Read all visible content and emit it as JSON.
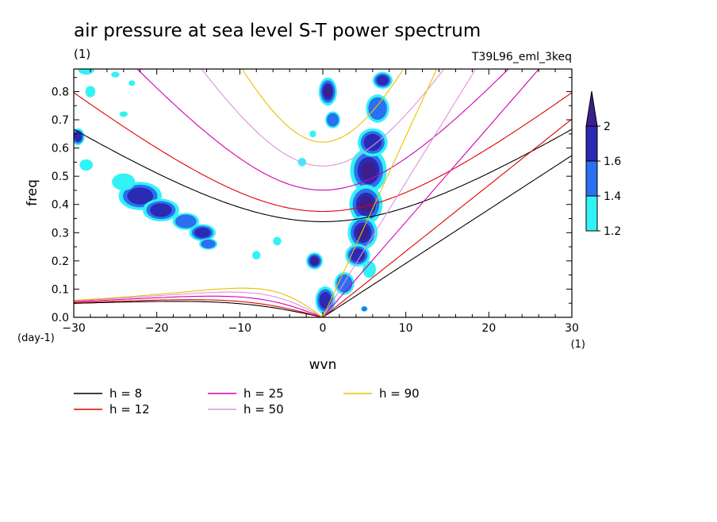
{
  "chart_data": {
    "type": "heatmap",
    "title": "air pressure at sea level S-T power spectrum",
    "subtitle_left": "(1)",
    "subtitle_right": "T39L96_eml_3keq",
    "xlabel": "wvn",
    "x_unit": "(1)",
    "ylabel": "freq",
    "y_unit": "(day-1)",
    "xlim": [
      -30,
      30
    ],
    "ylim": [
      0,
      0.88
    ],
    "xticks": [
      -30,
      -20,
      -10,
      0,
      10,
      20,
      30
    ],
    "yticks": [
      0.0,
      0.1,
      0.2,
      0.3,
      0.4,
      0.5,
      0.6,
      0.7,
      0.8
    ],
    "colorbar": {
      "levels": [
        1.2,
        1.4,
        1.6,
        2
      ],
      "colors": [
        "#33f2f5",
        "#2b70f0",
        "#2a2ab2",
        "#3c1f8a"
      ],
      "tick_labels": [
        "1.2",
        "1.4",
        "1.6",
        "2"
      ]
    },
    "contour_patches": [
      {
        "x": 5.5,
        "y": 0.52,
        "rx": 2.2,
        "ry": 0.08,
        "level": 3
      },
      {
        "x": 5.2,
        "y": 0.4,
        "rx": 2.0,
        "ry": 0.07,
        "level": 3
      },
      {
        "x": 4.8,
        "y": 0.3,
        "rx": 1.8,
        "ry": 0.06,
        "level": 3
      },
      {
        "x": 4.2,
        "y": 0.22,
        "rx": 1.5,
        "ry": 0.04,
        "level": 2
      },
      {
        "x": 6.0,
        "y": 0.62,
        "rx": 1.8,
        "ry": 0.05,
        "level": 2
      },
      {
        "x": 6.6,
        "y": 0.74,
        "rx": 1.4,
        "ry": 0.05,
        "level": 1
      },
      {
        "x": 7.2,
        "y": 0.84,
        "rx": 1.2,
        "ry": 0.03,
        "level": 2
      },
      {
        "x": 0.6,
        "y": 0.8,
        "rx": 1.1,
        "ry": 0.05,
        "level": 3
      },
      {
        "x": 1.2,
        "y": 0.7,
        "rx": 0.9,
        "ry": 0.03,
        "level": 1
      },
      {
        "x": -1.0,
        "y": 0.2,
        "rx": 1.0,
        "ry": 0.03,
        "level": 3
      },
      {
        "x": 0.3,
        "y": 0.06,
        "rx": 1.2,
        "ry": 0.05,
        "level": 2
      },
      {
        "x": 2.6,
        "y": 0.12,
        "rx": 1.2,
        "ry": 0.04,
        "level": 1
      },
      {
        "x": 5.6,
        "y": 0.17,
        "rx": 0.8,
        "ry": 0.03,
        "level": 0
      },
      {
        "x": 5.0,
        "y": 0.03,
        "rx": 0.4,
        "ry": 0.01,
        "level": 1
      },
      {
        "x": -22.0,
        "y": 0.43,
        "rx": 2.6,
        "ry": 0.05,
        "level": 2
      },
      {
        "x": -19.5,
        "y": 0.38,
        "rx": 2.2,
        "ry": 0.04,
        "level": 2
      },
      {
        "x": -16.5,
        "y": 0.34,
        "rx": 1.6,
        "ry": 0.03,
        "level": 1
      },
      {
        "x": -14.5,
        "y": 0.3,
        "rx": 1.6,
        "ry": 0.03,
        "level": 2
      },
      {
        "x": -13.8,
        "y": 0.26,
        "rx": 1.1,
        "ry": 0.02,
        "level": 1
      },
      {
        "x": -24.0,
        "y": 0.48,
        "rx": 1.4,
        "ry": 0.03,
        "level": 0
      },
      {
        "x": -28.5,
        "y": 0.54,
        "rx": 0.8,
        "ry": 0.02,
        "level": 0
      },
      {
        "x": -29.5,
        "y": 0.64,
        "rx": 0.8,
        "ry": 0.03,
        "level": 2
      },
      {
        "x": -28.5,
        "y": 0.88,
        "rx": 1.0,
        "ry": 0.02,
        "level": 0
      },
      {
        "x": -28.0,
        "y": 0.8,
        "rx": 0.6,
        "ry": 0.02,
        "level": 0
      },
      {
        "x": -24.0,
        "y": 0.72,
        "rx": 0.5,
        "ry": 0.01,
        "level": 0
      },
      {
        "x": -25.0,
        "y": 0.86,
        "rx": 0.5,
        "ry": 0.01,
        "level": 0
      },
      {
        "x": -23.0,
        "y": 0.83,
        "rx": 0.4,
        "ry": 0.01,
        "level": 0
      },
      {
        "x": -8.0,
        "y": 0.22,
        "rx": 0.5,
        "ry": 0.015,
        "level": 0
      },
      {
        "x": -5.5,
        "y": 0.27,
        "rx": 0.5,
        "ry": 0.015,
        "level": 0
      },
      {
        "x": -2.5,
        "y": 0.55,
        "rx": 0.5,
        "ry": 0.015,
        "level": 0
      },
      {
        "x": -1.2,
        "y": 0.65,
        "rx": 0.4,
        "ry": 0.012,
        "level": 0
      }
    ],
    "dispersion_curves": [
      {
        "h": 8,
        "label": "h =  8",
        "color": "#000000"
      },
      {
        "h": 12,
        "label": "h = 12",
        "color": "#e00000"
      },
      {
        "h": 25,
        "label": "h = 25",
        "color": "#d000b0"
      },
      {
        "h": 50,
        "label": "h = 50",
        "color": "#e090e0"
      },
      {
        "h": 90,
        "label": "h = 90",
        "color": "#e8c000"
      }
    ]
  }
}
